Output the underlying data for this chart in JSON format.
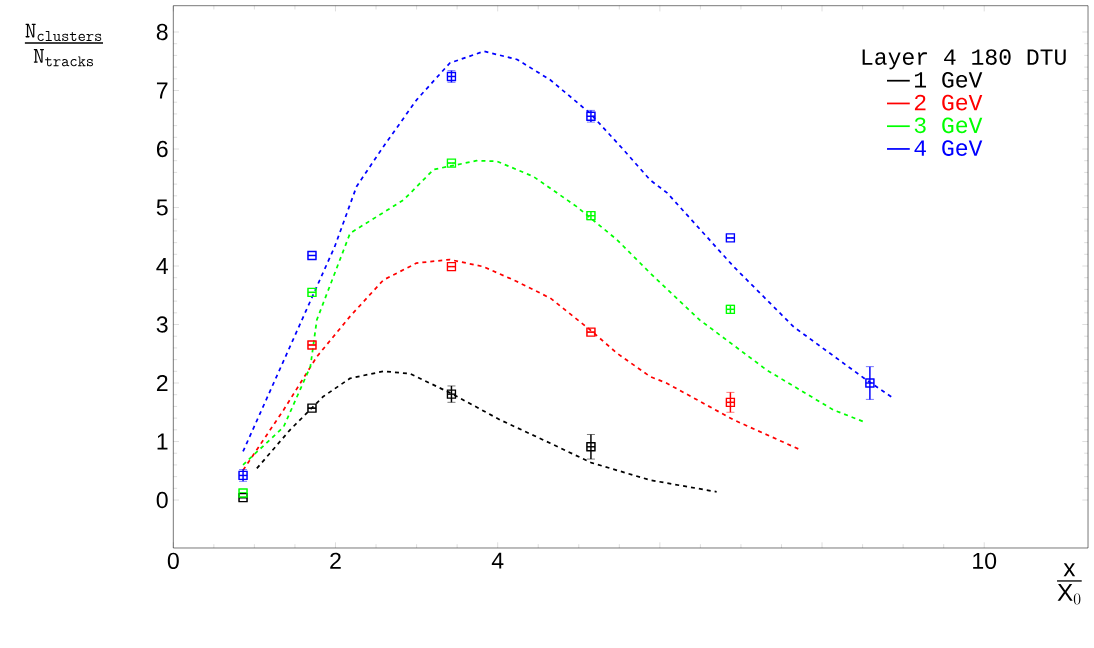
{
  "chart_data": {
    "type": "scatter",
    "xlabel": "\\frac{\\mathrm{x}}{\\mathrm{X}_0}",
    "ylabel": "\\frac{\\mathtt{N_{clusters}}}{\\mathtt{N_{tracks}}}",
    "legend_title": "Layer 4 180 DTU",
    "legend": "top right",
    "grid": false,
    "xlim": [
      0,
      11.28
    ],
    "ylim": [
      -0.82,
      8.45
    ],
    "xticks": [
      0,
      2,
      4,
      {
        "value": 6,
        "label": null
      },
      {
        "value": 8,
        "label": null
      },
      10
    ],
    "yticks": [
      0,
      1,
      2,
      3,
      4,
      5,
      6,
      7,
      8
    ],
    "x": [
      0.86,
      1.71,
      3.43,
      5.15,
      6.87,
      8.59
    ],
    "series": [
      {
        "name": "1 GeV",
        "color": "#000000",
        "type": "line",
        "line_style": "dashed",
        "marker": "none",
        "x": [
          1.03,
          1.44,
          1.85,
          2.18,
          2.59,
          2.92,
          3.43,
          4.03,
          4.65,
          5.15,
          5.88,
          6.7
        ],
        "values": [
          0.54,
          1.2,
          1.77,
          2.08,
          2.2,
          2.16,
          1.82,
          1.37,
          0.97,
          0.64,
          0.34,
          0.14
        ]
      },
      {
        "name": "2 GeV",
        "color": "#ff0000",
        "type": "line",
        "line_style": "dashed",
        "marker": "none",
        "x": [
          0.86,
          1.36,
          1.77,
          2.18,
          2.59,
          3.0,
          3.41,
          3.82,
          4.23,
          4.65,
          5.14,
          5.47,
          5.88,
          6.08,
          6.91,
          7.73
        ],
        "values": [
          0.51,
          1.54,
          2.45,
          3.14,
          3.76,
          4.05,
          4.11,
          3.99,
          3.74,
          3.45,
          2.91,
          2.51,
          2.11,
          2.0,
          1.37,
          0.86
        ]
      },
      {
        "name": "3 GeV",
        "color": "#00ff00",
        "type": "line",
        "line_style": "dashed",
        "marker": "none",
        "x": [
          0.86,
          1.36,
          1.69,
          1.77,
          2.18,
          2.84,
          3.21,
          3.74,
          3.99,
          4.44,
          4.97,
          5.47,
          5.88,
          6.49,
          7.32,
          8.14,
          8.51
        ],
        "values": [
          0.6,
          1.25,
          2.28,
          3.08,
          4.56,
          5.13,
          5.65,
          5.8,
          5.79,
          5.53,
          5.02,
          4.45,
          3.88,
          3.08,
          2.22,
          1.54,
          1.34
        ]
      },
      {
        "name": "4 GeV",
        "color": "#0000ff",
        "type": "line",
        "line_style": "dashed",
        "marker": "none",
        "x": [
          0.86,
          1.99,
          2.26,
          2.59,
          3.0,
          3.41,
          3.83,
          4.24,
          4.65,
          5.14,
          5.55,
          5.88,
          6.09,
          6.91,
          7.65,
          8.55,
          8.88
        ],
        "values": [
          0.83,
          4.33,
          5.36,
          6.04,
          6.84,
          7.47,
          7.67,
          7.53,
          7.18,
          6.61,
          5.99,
          5.47,
          5.25,
          3.99,
          2.96,
          2.05,
          1.74
        ]
      },
      {
        "color": "#000000",
        "marker": "square",
        "values": [
          0.04,
          1.57,
          1.81,
          0.91,
          null,
          null
        ],
        "errors": [
          null,
          null,
          0.14,
          0.21,
          null,
          null
        ],
        "xerrors": [
          0.05,
          0.05,
          0.05,
          0.05,
          null,
          null
        ]
      },
      {
        "color": "#ff0000",
        "marker": "square",
        "values": [
          null,
          2.65,
          3.99,
          2.87,
          1.67,
          null
        ],
        "errors": [
          null,
          null,
          null,
          null,
          0.17,
          null
        ],
        "xerrors": [
          null,
          0.05,
          0.05,
          0.05,
          0.05,
          null
        ]
      },
      {
        "color": "#00ff00",
        "marker": "square",
        "values": [
          0.12,
          3.55,
          5.76,
          4.86,
          3.26,
          null
        ],
        "errors": [
          null,
          null,
          null,
          0.07,
          0.07,
          null
        ],
        "xerrors": [
          0.05,
          0.05,
          0.05,
          0.05,
          0.05,
          null
        ]
      },
      {
        "color": "#0000ff",
        "marker": "square",
        "values": [
          0.42,
          4.18,
          7.24,
          6.56,
          4.48,
          2.0
        ],
        "errors": [
          0.1,
          null,
          0.1,
          0.1,
          null,
          0.28
        ],
        "xerrors": [
          0.05,
          0.05,
          0.05,
          0.05,
          0.05,
          0.05
        ]
      }
    ]
  }
}
